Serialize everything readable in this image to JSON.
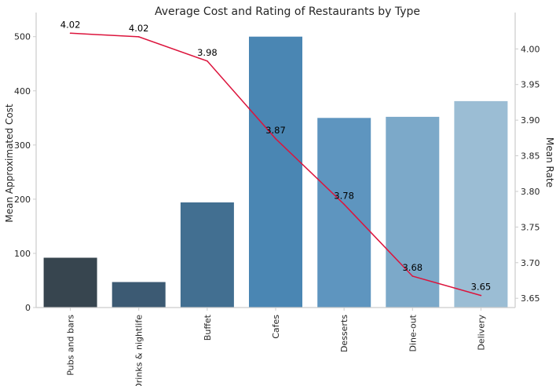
{
  "chart_data": {
    "type": "bar",
    "title": "Average Cost and Rating of Restaurants by Type",
    "xlabel": "",
    "ylabel": "Mean Approximated Cost",
    "y2label": "Mean Rate",
    "categories": [
      "Pubs and bars",
      "Drinks & nightlife",
      "Buffet",
      "Cafes",
      "Desserts",
      "Dine-out",
      "Delivery"
    ],
    "series": [
      {
        "kind": "bar",
        "axis": "left",
        "values": [
          92,
          47,
          194,
          500,
          350,
          352,
          381
        ],
        "colors": [
          "#37454f",
          "#3c5a73",
          "#426f91",
          "#4a86b3",
          "#5e95bf",
          "#7ca9c9",
          "#9bbdd4"
        ]
      },
      {
        "kind": "line",
        "axis": "right",
        "values": [
          4.022,
          4.017,
          3.983,
          3.874,
          3.782,
          3.681,
          3.654
        ],
        "labels": [
          "4.02",
          "4.02",
          "3.98",
          "3.87",
          "3.78",
          "3.68",
          "3.65"
        ],
        "color": "#dc143c"
      }
    ],
    "ylim": [
      0,
      530
    ],
    "y2lim": [
      3.637,
      4.04
    ],
    "yticks": [
      "0",
      "100",
      "200",
      "300",
      "400",
      "500"
    ],
    "y2ticks": [
      "3.65",
      "3.70",
      "3.75",
      "3.80",
      "3.85",
      "3.90",
      "3.95",
      "4.00"
    ],
    "grid": false
  }
}
